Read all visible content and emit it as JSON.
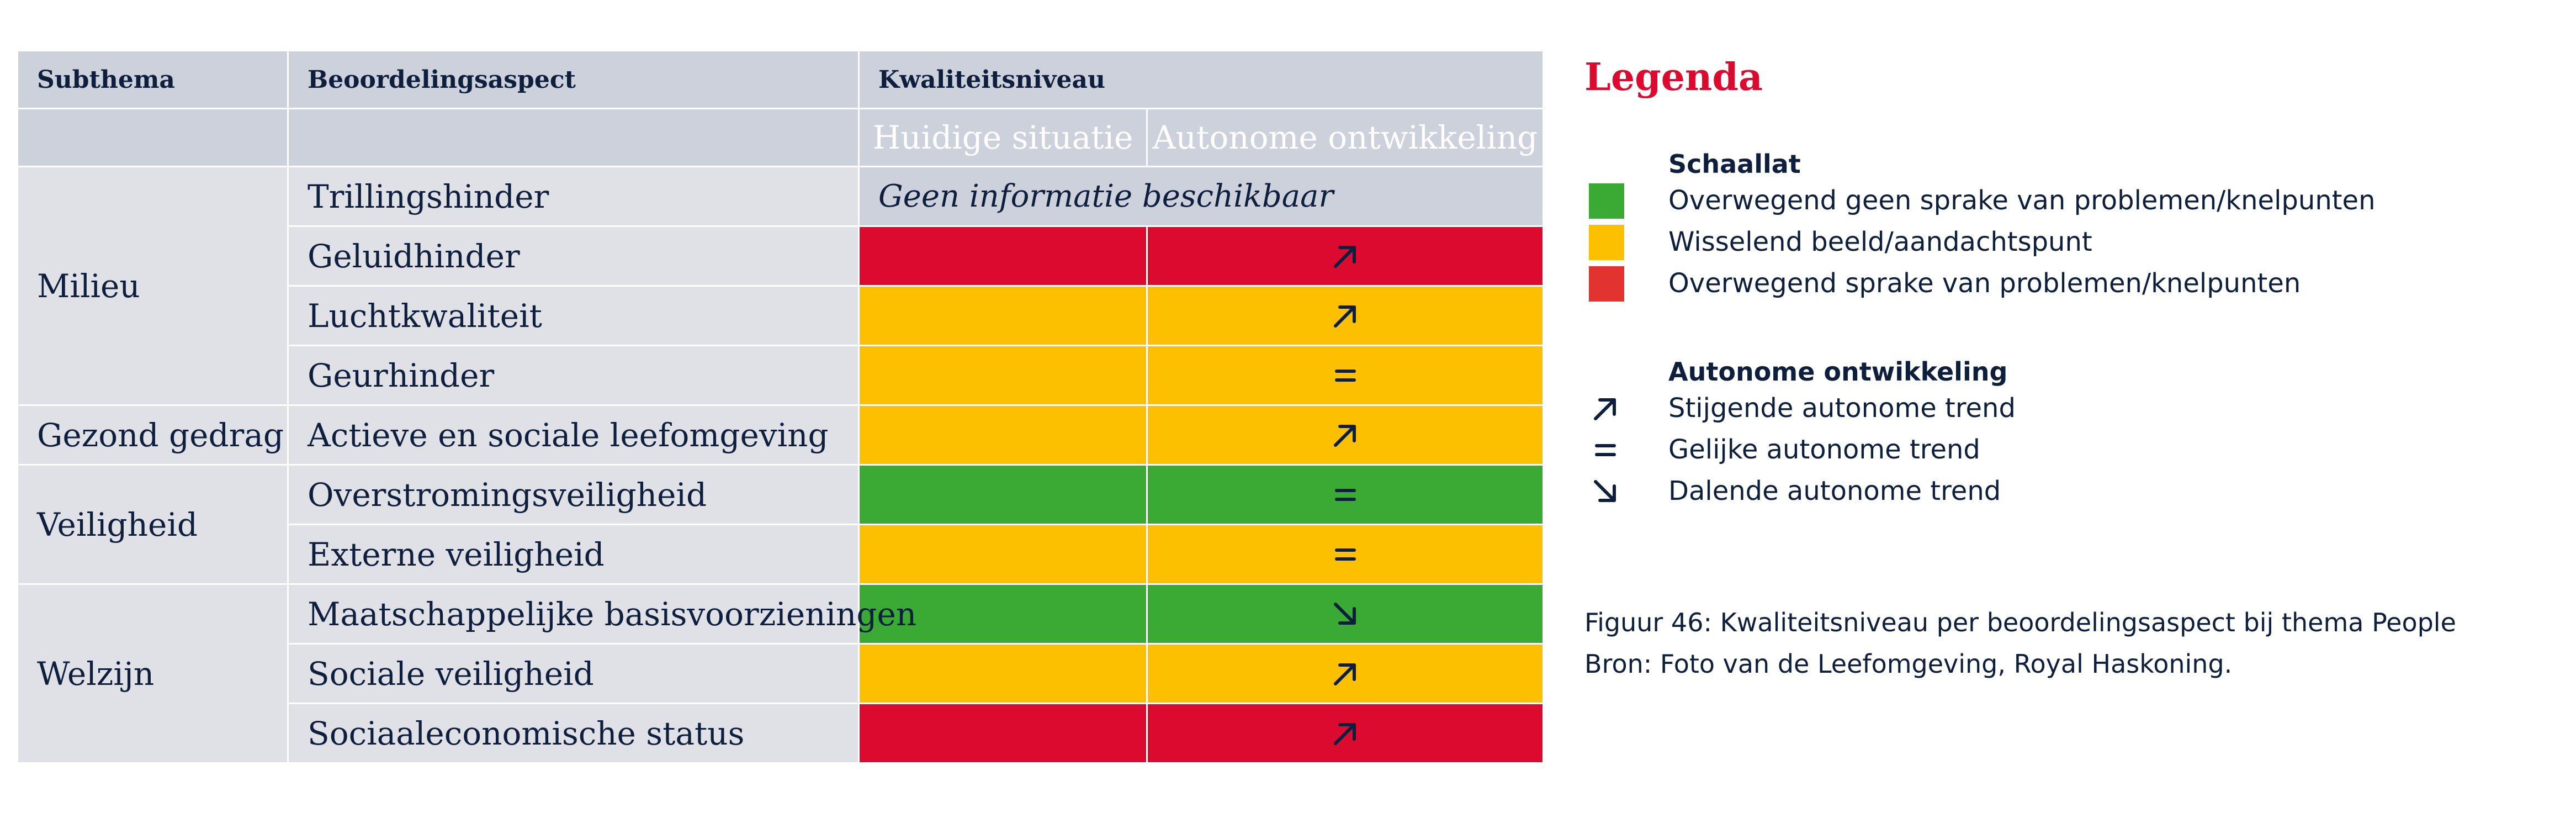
{
  "table": {
    "headers": {
      "subthema": "Subthema",
      "beoordelingsaspect": "Beoordelingsaspect",
      "kwaliteitsniveau": "Kwaliteitsniveau"
    },
    "subheaders": {
      "huidig": "Huidige situatie",
      "autonoom": "Autonome ontwikkeling"
    },
    "themes": [
      {
        "label": "Milieu",
        "rows": 4
      },
      {
        "label": "Gezond gedrag",
        "rows": 1
      },
      {
        "label": "Veiligheid",
        "rows": 2
      },
      {
        "label": "Welzijn",
        "rows": 3
      }
    ],
    "rows": [
      {
        "aspect": "Trillingshinder",
        "no_info": "Geen informatie beschikbaar"
      },
      {
        "aspect": "Geluidhinder",
        "huidig": "red",
        "autonoom": "red",
        "trend": "up"
      },
      {
        "aspect": "Luchtkwaliteit",
        "huidig": "yellow",
        "autonoom": "yellow",
        "trend": "up"
      },
      {
        "aspect": "Geurhinder",
        "huidig": "yellow",
        "autonoom": "yellow",
        "trend": "equal"
      },
      {
        "aspect": "Actieve en sociale leefomgeving",
        "huidig": "yellow",
        "autonoom": "yellow",
        "trend": "up"
      },
      {
        "aspect": "Overstromingsveiligheid",
        "huidig": "green",
        "autonoom": "green",
        "trend": "equal"
      },
      {
        "aspect": "Externe veiligheid",
        "huidig": "yellow",
        "autonoom": "yellow",
        "trend": "equal"
      },
      {
        "aspect": "Maatschappelijke basisvoorzieningen",
        "huidig": "green",
        "autonoom": "green",
        "trend": "down"
      },
      {
        "aspect": "Sociale veiligheid",
        "huidig": "yellow",
        "autonoom": "yellow",
        "trend": "up"
      },
      {
        "aspect": "Sociaaleconomische status",
        "huidig": "red",
        "autonoom": "red",
        "trend": "up"
      }
    ]
  },
  "legend": {
    "title": "Legenda",
    "schaallat": {
      "heading": "Schaallat",
      "items": [
        {
          "color": "green",
          "label": "Overwegend geen sprake van problemen/knelpunten"
        },
        {
          "color": "yellow",
          "label": "Wisselend beeld/aandachtspunt"
        },
        {
          "color": "red",
          "label": "Overwegend sprake van problemen/knelpunten"
        }
      ]
    },
    "autonoom": {
      "heading": "Autonome ontwikkeling",
      "items": [
        {
          "symbol": "up",
          "label": "Stijgende autonome trend"
        },
        {
          "symbol": "equal",
          "label": "Gelijke autonome trend"
        },
        {
          "symbol": "down",
          "label": "Dalende autonome trend"
        }
      ]
    }
  },
  "caption": {
    "line1": "Figuur 46: Kwaliteitsniveau per beoordelingsaspect bij thema People",
    "line2": "Bron: Foto van de Leefomgeving, Royal Haskoning."
  },
  "colors": {
    "green": "#3aaa35",
    "yellow": "#fcc000",
    "red": "#dc0a2e",
    "navy": "#0e1f3d",
    "legend_red": "#e3332e"
  }
}
